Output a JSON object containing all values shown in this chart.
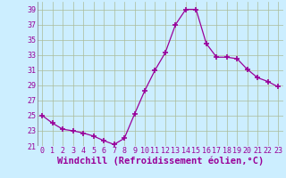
{
  "x": [
    0,
    1,
    2,
    3,
    4,
    5,
    6,
    7,
    8,
    9,
    10,
    11,
    12,
    13,
    14,
    15,
    16,
    17,
    18,
    19,
    20,
    21,
    22,
    23
  ],
  "y": [
    25,
    24,
    23.2,
    23,
    22.7,
    22.3,
    21.7,
    21.2,
    22,
    25.2,
    28.3,
    31,
    33.3,
    37,
    39,
    39,
    34.5,
    32.7,
    32.7,
    32.5,
    31.1,
    30,
    29.5,
    28.8
  ],
  "line_color": "#990099",
  "marker_color": "#990099",
  "bg_color": "#cceeff",
  "grid_color": "#aabb99",
  "xlabel": "Windchill (Refroidissement éolien,°C)",
  "tick_color": "#990099",
  "ylim": [
    21,
    40
  ],
  "yticks": [
    21,
    23,
    25,
    27,
    29,
    31,
    33,
    35,
    37,
    39
  ],
  "xticks": [
    0,
    1,
    2,
    3,
    4,
    5,
    6,
    7,
    8,
    9,
    10,
    11,
    12,
    13,
    14,
    15,
    16,
    17,
    18,
    19,
    20,
    21,
    22,
    23
  ],
  "xlim": [
    -0.5,
    23.5
  ],
  "tick_fontsize": 6,
  "xlabel_fontsize": 7.5
}
